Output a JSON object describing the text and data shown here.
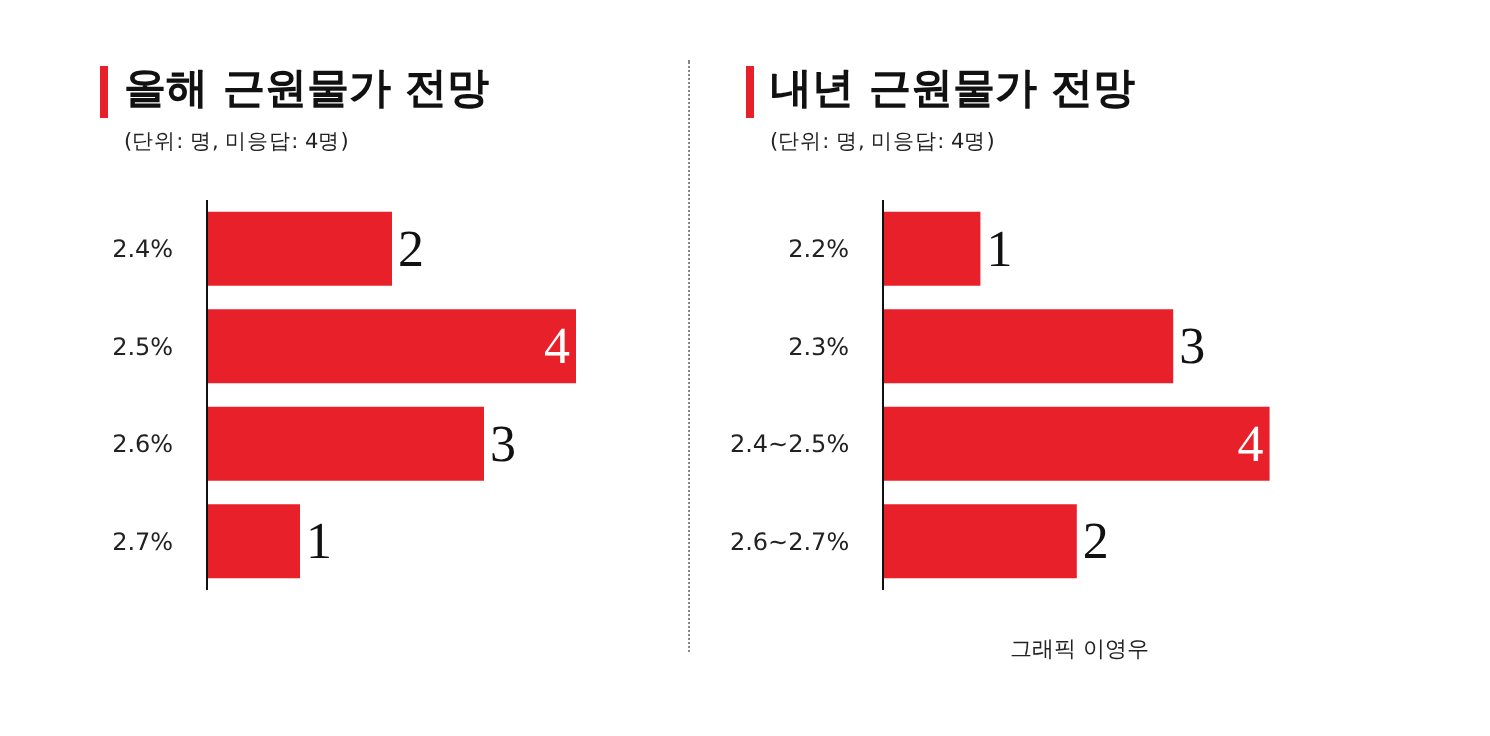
{
  "chart_data": [
    {
      "type": "bar",
      "orientation": "horizontal",
      "title": "올해 근원물가 전망",
      "subtitle": "(단위: 명, 미응답: 4명)",
      "categories": [
        "2.4%",
        "2.5%",
        "2.6%",
        "2.7%"
      ],
      "values": [
        2,
        4,
        3,
        1
      ],
      "color": "#e8202a",
      "data_labels": true,
      "tick_labels": "y"
    },
    {
      "type": "bar",
      "orientation": "horizontal",
      "title": "내년 근원물가 전망",
      "subtitle": "(단위: 명, 미응답: 4명)",
      "categories": [
        "2.2%",
        "2.3%",
        "2.4~2.5%",
        "2.6~2.7%"
      ],
      "values": [
        1,
        3,
        4,
        2
      ],
      "color": "#e8202a",
      "data_labels": true,
      "tick_labels": "y",
      "annotations": [
        "그래픽 이영우"
      ]
    }
  ]
}
